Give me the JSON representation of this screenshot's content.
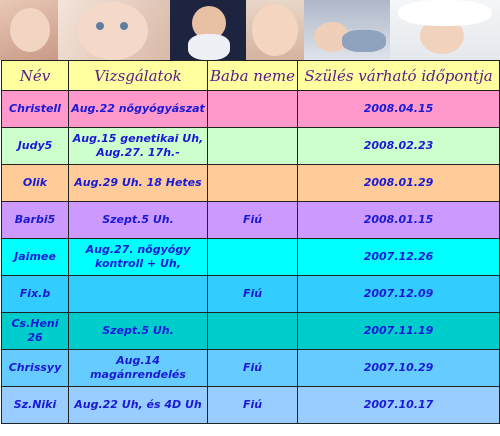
{
  "header": {
    "col_name": "Név",
    "col_exams": "Vizsgálatok",
    "col_gender": "Baba neme",
    "col_due": "Szülés várható időpontja"
  },
  "rows": [
    {
      "name": "Christell",
      "exams": "Aug.22 nőgyógyászat",
      "gender": "",
      "due": "2008.04.15",
      "color": "#ff99cc"
    },
    {
      "name": "Judy5",
      "exams": "Aug.15 genetikai Uh, Aug.27. 17h.-",
      "gender": "",
      "due": "2008.02.23",
      "color": "#ccffcc"
    },
    {
      "name": "Olik",
      "exams": "Aug.29 Uh. 18 Hetes",
      "gender": "",
      "due": "2008.01.29",
      "color": "#ffcc99"
    },
    {
      "name": "Barbi5",
      "exams": "Szept.5 Uh.",
      "gender": "Fiú",
      "due": "2008.01.15",
      "color": "#cc99ff"
    },
    {
      "name": "Jaimee",
      "exams": "Aug.27. nőgyógy kontroll + Uh,",
      "gender": "",
      "due": "2007.12.26",
      "color": "#00ffff"
    },
    {
      "name": "Fix.b",
      "exams": "",
      "gender": "Fiú",
      "due": "2007.12.09",
      "color": "#33ccff"
    },
    {
      "name": "Cs.Heni 26",
      "exams": "Szept.5 Uh.",
      "gender": "",
      "due": "2007.11.19",
      "color": "#00cccc"
    },
    {
      "name": "Chrissyy",
      "exams": "Aug.14 magánrendelés",
      "gender": "Fiú",
      "due": "2007.10.29",
      "color": "#66ccff"
    },
    {
      "name": "Sz.Niki",
      "exams": "Aug.22 Uh, és 4D Uh",
      "gender": "Fiú",
      "due": "2007.10.17",
      "color": "#99ccff"
    }
  ]
}
